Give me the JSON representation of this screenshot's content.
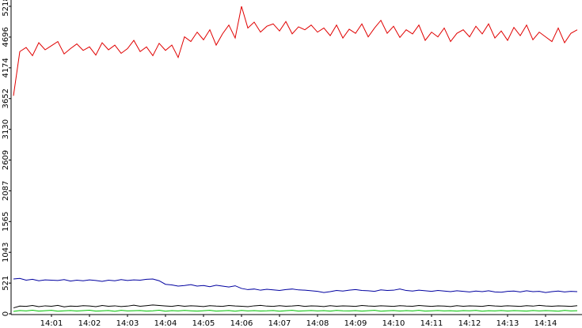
{
  "chart_data": {
    "type": "line",
    "categories": [
      null,
      null,
      null,
      null,
      null,
      null,
      "14:01",
      null,
      null,
      null,
      null,
      null,
      "14:02",
      null,
      null,
      null,
      null,
      null,
      "14:03",
      null,
      null,
      null,
      null,
      null,
      "14:04",
      null,
      null,
      null,
      null,
      null,
      "14:05",
      null,
      null,
      null,
      null,
      null,
      "14:06",
      null,
      null,
      null,
      null,
      null,
      "14:07",
      null,
      null,
      null,
      null,
      null,
      "14:08",
      null,
      null,
      null,
      null,
      null,
      "14:09",
      null,
      null,
      null,
      null,
      null,
      "14:10",
      null,
      null,
      null,
      null,
      null,
      "14:11",
      null,
      null,
      null,
      null,
      null,
      "14:12",
      null,
      null,
      null,
      null,
      null,
      "14:13",
      null,
      null,
      null,
      null,
      null,
      "14:14",
      null,
      null,
      null,
      null,
      null
    ],
    "ylim": [
      0,
      5218
    ],
    "yticks": [
      0,
      521,
      1043,
      1565,
      2087,
      2609,
      3130,
      3652,
      4174,
      4696,
      5218
    ],
    "series": [
      {
        "color": "#e00000",
        "values": [
          3700,
          4450,
          4520,
          4380,
          4600,
          4480,
          4550,
          4620,
          4410,
          4500,
          4580,
          4470,
          4530,
          4390,
          4600,
          4480,
          4560,
          4420,
          4500,
          4640,
          4450,
          4530,
          4380,
          4590,
          4470,
          4560,
          4350,
          4700,
          4620,
          4780,
          4650,
          4820,
          4560,
          4750,
          4900,
          4680,
          5218,
          4850,
          4950,
          4780,
          4880,
          4920,
          4800,
          4960,
          4750,
          4870,
          4820,
          4900,
          4780,
          4850,
          4720,
          4900,
          4680,
          4830,
          4760,
          4920,
          4700,
          4850,
          4980,
          4760,
          4880,
          4690,
          4820,
          4750,
          4900,
          4640,
          4780,
          4700,
          4850,
          4620,
          4760,
          4820,
          4700,
          4880,
          4750,
          4920,
          4680,
          4800,
          4640,
          4860,
          4720,
          4900,
          4650,
          4780,
          4700,
          4620,
          4850,
          4600,
          4760,
          4820
        ]
      },
      {
        "color": "#0000a0",
        "values": [
          590,
          600,
          570,
          585,
          560,
          575,
          570,
          565,
          580,
          555,
          570,
          560,
          575,
          565,
          550,
          570,
          560,
          580,
          565,
          575,
          570,
          585,
          590,
          560,
          500,
          490,
          470,
          480,
          495,
          470,
          480,
          460,
          485,
          470,
          455,
          475,
          430,
          410,
          420,
          400,
          415,
          405,
          395,
          410,
          420,
          405,
          400,
          390,
          380,
          360,
          375,
          395,
          385,
          400,
          410,
          395,
          390,
          380,
          405,
          395,
          400,
          420,
          395,
          385,
          400,
          390,
          380,
          395,
          385,
          375,
          390,
          380,
          370,
          385,
          375,
          390,
          370,
          365,
          380,
          385,
          370,
          390,
          375,
          380,
          360,
          375,
          385,
          370,
          380,
          375
        ]
      },
      {
        "color": "#000000",
        "values": [
          100,
          130,
          125,
          140,
          120,
          135,
          128,
          142,
          118,
          130,
          125,
          138,
          132,
          120,
          140,
          128,
          135,
          122,
          130,
          145,
          128,
          138,
          150,
          140,
          132,
          125,
          140,
          128,
          136,
          130,
          122,
          138,
          130,
          125,
          140,
          132,
          128,
          120,
          135,
          142,
          130,
          125,
          138,
          128,
          132,
          140,
          126,
          135,
          130,
          122,
          138,
          128,
          135,
          130,
          125,
          140,
          132,
          128,
          136,
          130,
          125,
          138,
          130,
          128,
          140,
          132,
          126,
          135,
          130,
          122,
          138,
          128,
          135,
          130,
          125,
          140,
          132,
          128,
          136,
          130,
          125,
          138,
          130,
          142,
          132,
          128,
          135,
          130,
          125,
          138
        ]
      },
      {
        "color": "#00c000",
        "values": [
          40,
          55,
          48,
          60,
          45,
          52,
          58,
          44,
          50,
          56,
          47,
          53,
          60,
          45,
          50,
          55,
          42,
          58,
          49,
          52,
          55,
          46,
          51,
          60,
          44,
          53,
          48,
          57,
          50,
          45,
          52,
          58,
          46,
          50,
          55,
          43,
          57,
          49,
          53,
          47,
          50,
          56,
          44,
          52,
          59,
          46,
          51,
          55,
          48,
          53,
          45,
          57,
          50,
          48,
          54,
          46,
          52,
          58,
          44,
          51,
          55,
          47,
          53,
          49,
          58,
          45,
          50,
          56,
          48,
          52,
          46,
          54,
          50,
          57,
          43,
          52,
          49,
          55,
          47,
          53,
          51,
          45,
          56,
          48,
          53,
          50,
          44,
          57,
          49,
          52
        ]
      }
    ]
  }
}
